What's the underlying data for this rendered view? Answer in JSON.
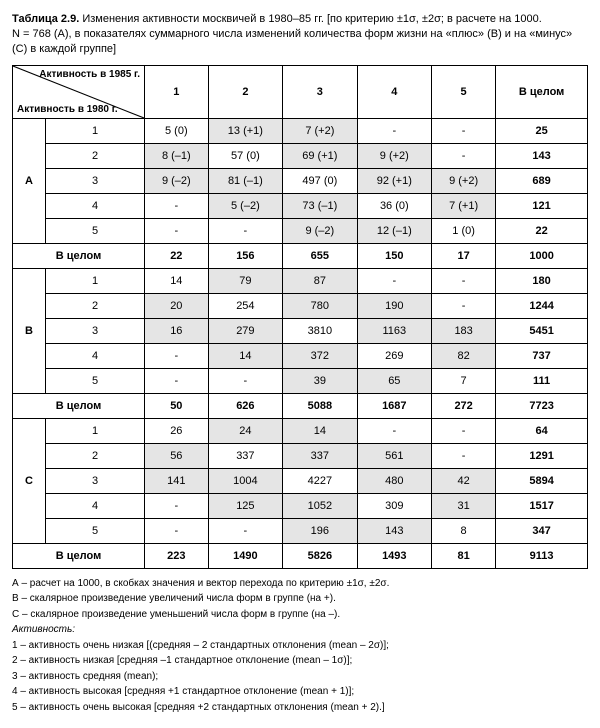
{
  "caption": {
    "bold_lead": "Таблица 2.9.",
    "text1": " Изменения активности москвичей в 1980–85 гг. [по критерию ±1σ, ±2σ; в расчете на 1000.",
    "text2": "N = 768 (А), в показателях суммарного числа изменений количества форм жизни на «плюс» (В) и на «минус» (С) в каждой группе]"
  },
  "diag": {
    "top": "Активность в 1985 г.",
    "bottom": "Активность в 1980 г."
  },
  "cols": [
    "1",
    "2",
    "3",
    "4",
    "5",
    "В целом"
  ],
  "groups": [
    {
      "label": "А",
      "rows": [
        {
          "label": "1",
          "cells": [
            {
              "v": "5 (0)"
            },
            {
              "v": "13 (+1)",
              "s": 1
            },
            {
              "v": "7 (+2)",
              "s": 1
            },
            {
              "v": "-"
            },
            {
              "v": "-"
            },
            {
              "v": "25",
              "b": 1
            }
          ]
        },
        {
          "label": "2",
          "cells": [
            {
              "v": "8 (–1)",
              "s": 1
            },
            {
              "v": "57 (0)"
            },
            {
              "v": "69 (+1)",
              "s": 1
            },
            {
              "v": "9 (+2)",
              "s": 1
            },
            {
              "v": "-"
            },
            {
              "v": "143",
              "b": 1
            }
          ]
        },
        {
          "label": "3",
          "cells": [
            {
              "v": "9 (–2)",
              "s": 1
            },
            {
              "v": "81 (–1)",
              "s": 1
            },
            {
              "v": "497 (0)"
            },
            {
              "v": "92 (+1)",
              "s": 1
            },
            {
              "v": "9 (+2)",
              "s": 1
            },
            {
              "v": "689",
              "b": 1
            }
          ]
        },
        {
          "label": "4",
          "cells": [
            {
              "v": "-"
            },
            {
              "v": "5 (–2)",
              "s": 1
            },
            {
              "v": "73 (–1)",
              "s": 1
            },
            {
              "v": "36 (0)"
            },
            {
              "v": "7 (+1)",
              "s": 1
            },
            {
              "v": "121",
              "b": 1
            }
          ]
        },
        {
          "label": "5",
          "cells": [
            {
              "v": "-"
            },
            {
              "v": "-"
            },
            {
              "v": "9 (–2)",
              "s": 1
            },
            {
              "v": "12 (–1)",
              "s": 1
            },
            {
              "v": "1 (0)"
            },
            {
              "v": "22",
              "b": 1
            }
          ]
        }
      ],
      "total": {
        "label": "В целом",
        "cells": [
          "22",
          "156",
          "655",
          "150",
          "17",
          "1000"
        ]
      }
    },
    {
      "label": "В",
      "rows": [
        {
          "label": "1",
          "cells": [
            {
              "v": "14"
            },
            {
              "v": "79",
              "s": 1
            },
            {
              "v": "87",
              "s": 1
            },
            {
              "v": "-"
            },
            {
              "v": "-"
            },
            {
              "v": "180",
              "b": 1
            }
          ]
        },
        {
          "label": "2",
          "cells": [
            {
              "v": "20",
              "s": 1
            },
            {
              "v": "254"
            },
            {
              "v": "780",
              "s": 1
            },
            {
              "v": "190",
              "s": 1
            },
            {
              "v": "-"
            },
            {
              "v": "1244",
              "b": 1
            }
          ]
        },
        {
          "label": "3",
          "cells": [
            {
              "v": "16",
              "s": 1
            },
            {
              "v": "279",
              "s": 1
            },
            {
              "v": "3810"
            },
            {
              "v": "1163",
              "s": 1
            },
            {
              "v": "183",
              "s": 1
            },
            {
              "v": "5451",
              "b": 1
            }
          ]
        },
        {
          "label": "4",
          "cells": [
            {
              "v": "-"
            },
            {
              "v": "14",
              "s": 1
            },
            {
              "v": "372",
              "s": 1
            },
            {
              "v": "269"
            },
            {
              "v": "82",
              "s": 1
            },
            {
              "v": "737",
              "b": 1
            }
          ]
        },
        {
          "label": "5",
          "cells": [
            {
              "v": "-"
            },
            {
              "v": "-"
            },
            {
              "v": "39",
              "s": 1
            },
            {
              "v": "65",
              "s": 1
            },
            {
              "v": "7"
            },
            {
              "v": "111",
              "b": 1
            }
          ]
        }
      ],
      "total": {
        "label": "В целом",
        "cells": [
          "50",
          "626",
          "5088",
          "1687",
          "272",
          "7723"
        ]
      }
    },
    {
      "label": "С",
      "rows": [
        {
          "label": "1",
          "cells": [
            {
              "v": "26"
            },
            {
              "v": "24",
              "s": 1
            },
            {
              "v": "14",
              "s": 1
            },
            {
              "v": "-"
            },
            {
              "v": "-"
            },
            {
              "v": "64",
              "b": 1
            }
          ]
        },
        {
          "label": "2",
          "cells": [
            {
              "v": "56",
              "s": 1
            },
            {
              "v": "337"
            },
            {
              "v": "337",
              "s": 1
            },
            {
              "v": "561",
              "s": 1
            },
            {
              "v": "-"
            },
            {
              "v": "1291",
              "b": 1
            }
          ]
        },
        {
          "label": "3",
          "cells": [
            {
              "v": "141",
              "s": 1
            },
            {
              "v": "1004",
              "s": 1
            },
            {
              "v": "4227"
            },
            {
              "v": "480",
              "s": 1
            },
            {
              "v": "42",
              "s": 1
            },
            {
              "v": "5894",
              "b": 1
            }
          ]
        },
        {
          "label": "4",
          "cells": [
            {
              "v": "-"
            },
            {
              "v": "125",
              "s": 1
            },
            {
              "v": "1052",
              "s": 1
            },
            {
              "v": "309"
            },
            {
              "v": "31",
              "s": 1
            },
            {
              "v": "1517",
              "b": 1
            }
          ]
        },
        {
          "label": "5",
          "cells": [
            {
              "v": "-"
            },
            {
              "v": "-"
            },
            {
              "v": "196",
              "s": 1
            },
            {
              "v": "143",
              "s": 1
            },
            {
              "v": "8"
            },
            {
              "v": "347",
              "b": 1
            }
          ]
        }
      ],
      "total": {
        "label": "В целом",
        "cells": [
          "223",
          "1490",
          "5826",
          "1493",
          "81",
          "9113"
        ]
      }
    }
  ],
  "footnotes": {
    "A": "А – расчет на 1000, в скобках значения и вектор перехода по критерию ±1σ, ±2σ.",
    "B": "В – скалярное произведение увеличений числа форм в группе (на +).",
    "C": "С – скалярное произведение уменьшений числа форм в группе (на –).",
    "act_label": "Активность:",
    "a1": "1 – активность очень низкая [(средняя – 2 стандартных отклонения (mean – 2σ)];",
    "a2": "2 – активность низкая [средняя –1 стандартное отклонение (mean – 1σ)];",
    "a3": "3 – активность средняя (mean);",
    "a4": "4 – активность высокая [средняя +1 стандартное отклонение (mean + 1)];",
    "a5": "5 – активность очень высокая [средняя +2 стандартных отклонения (mean + 2).]"
  },
  "style": {
    "shade_color": "#e5e5e5",
    "border_color": "#000000",
    "font_size_body": 11,
    "font_size_foot": 10
  }
}
